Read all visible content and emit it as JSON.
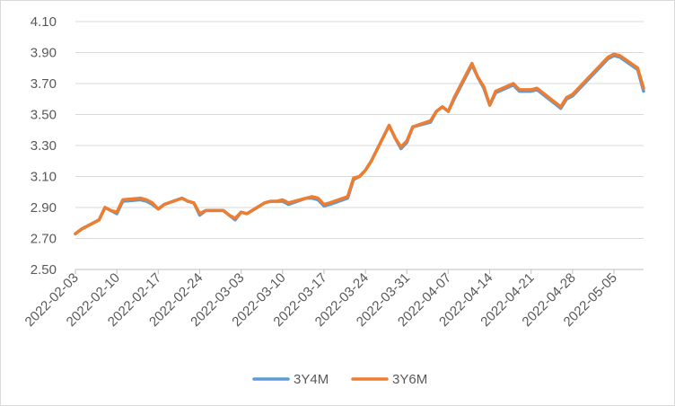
{
  "chart_data": {
    "type": "line",
    "title": "",
    "xlabel": "",
    "ylabel": "",
    "ylim": [
      2.5,
      4.1
    ],
    "yticks": [
      "2.50",
      "2.70",
      "2.90",
      "3.10",
      "3.30",
      "3.50",
      "3.70",
      "3.90",
      "4.10"
    ],
    "xticks": [
      "2022-02-03",
      "2022-02-10",
      "2022-02-17",
      "2022-02-24",
      "2022-03-03",
      "2022-03-10",
      "2022-03-17",
      "2022-03-24",
      "2022-03-31",
      "2022-04-07",
      "2022-04-14",
      "2022-04-21",
      "2022-04-28",
      "2022-05-05"
    ],
    "x_range": [
      "2022-02-03",
      "2022-05-10"
    ],
    "grid": true,
    "legend_position": "bottom",
    "series": [
      {
        "name": "3Y4M",
        "color": "#5B9BD5",
        "points": [
          [
            "2022-02-03",
            2.73
          ],
          [
            "2022-02-04",
            2.76
          ],
          [
            "2022-02-07",
            2.82
          ],
          [
            "2022-02-08",
            2.9
          ],
          [
            "2022-02-09",
            2.88
          ],
          [
            "2022-02-10",
            2.86
          ],
          [
            "2022-02-11",
            2.94
          ],
          [
            "2022-02-14",
            2.95
          ],
          [
            "2022-02-15",
            2.94
          ],
          [
            "2022-02-16",
            2.92
          ],
          [
            "2022-02-17",
            2.89
          ],
          [
            "2022-02-18",
            2.92
          ],
          [
            "2022-02-21",
            2.96
          ],
          [
            "2022-02-22",
            2.94
          ],
          [
            "2022-02-23",
            2.93
          ],
          [
            "2022-02-24",
            2.85
          ],
          [
            "2022-02-25",
            2.88
          ],
          [
            "2022-02-28",
            2.88
          ],
          [
            "2022-03-01",
            2.85
          ],
          [
            "2022-03-02",
            2.82
          ],
          [
            "2022-03-03",
            2.87
          ],
          [
            "2022-03-04",
            2.86
          ],
          [
            "2022-03-07",
            2.93
          ],
          [
            "2022-03-08",
            2.94
          ],
          [
            "2022-03-09",
            2.94
          ],
          [
            "2022-03-10",
            2.94
          ],
          [
            "2022-03-11",
            2.92
          ],
          [
            "2022-03-14",
            2.96
          ],
          [
            "2022-03-15",
            2.96
          ],
          [
            "2022-03-16",
            2.95
          ],
          [
            "2022-03-17",
            2.91
          ],
          [
            "2022-03-18",
            2.92
          ],
          [
            "2022-03-21",
            2.96
          ],
          [
            "2022-03-22",
            3.08
          ],
          [
            "2022-03-23",
            3.1
          ],
          [
            "2022-03-24",
            3.14
          ],
          [
            "2022-03-25",
            3.2
          ],
          [
            "2022-03-28",
            3.43
          ],
          [
            "2022-03-29",
            3.35
          ],
          [
            "2022-03-30",
            3.28
          ],
          [
            "2022-03-31",
            3.32
          ],
          [
            "2022-04-01",
            3.42
          ],
          [
            "2022-04-04",
            3.45
          ],
          [
            "2022-04-05",
            3.52
          ],
          [
            "2022-04-06",
            3.55
          ],
          [
            "2022-04-07",
            3.52
          ],
          [
            "2022-04-08",
            3.6
          ],
          [
            "2022-04-11",
            3.82
          ],
          [
            "2022-04-12",
            3.74
          ],
          [
            "2022-04-13",
            3.67
          ],
          [
            "2022-04-14",
            3.56
          ],
          [
            "2022-04-15",
            3.64
          ],
          [
            "2022-04-18",
            3.69
          ],
          [
            "2022-04-19",
            3.65
          ],
          [
            "2022-04-20",
            3.65
          ],
          [
            "2022-04-21",
            3.65
          ],
          [
            "2022-04-22",
            3.66
          ],
          [
            "2022-04-25",
            3.57
          ],
          [
            "2022-04-26",
            3.54
          ],
          [
            "2022-04-27",
            3.6
          ],
          [
            "2022-04-28",
            3.62
          ],
          [
            "2022-05-04",
            3.86
          ],
          [
            "2022-05-05",
            3.88
          ],
          [
            "2022-05-06",
            3.87
          ],
          [
            "2022-05-09",
            3.79
          ],
          [
            "2022-05-10",
            3.65
          ]
        ]
      },
      {
        "name": "3Y6M",
        "color": "#ED7D31",
        "points": [
          [
            "2022-02-03",
            2.73
          ],
          [
            "2022-02-04",
            2.76
          ],
          [
            "2022-02-07",
            2.82
          ],
          [
            "2022-02-08",
            2.9
          ],
          [
            "2022-02-09",
            2.88
          ],
          [
            "2022-02-10",
            2.87
          ],
          [
            "2022-02-11",
            2.95
          ],
          [
            "2022-02-14",
            2.96
          ],
          [
            "2022-02-15",
            2.95
          ],
          [
            "2022-02-16",
            2.93
          ],
          [
            "2022-02-17",
            2.89
          ],
          [
            "2022-02-18",
            2.92
          ],
          [
            "2022-02-21",
            2.96
          ],
          [
            "2022-02-22",
            2.94
          ],
          [
            "2022-02-23",
            2.93
          ],
          [
            "2022-02-24",
            2.86
          ],
          [
            "2022-02-25",
            2.88
          ],
          [
            "2022-02-28",
            2.88
          ],
          [
            "2022-03-01",
            2.85
          ],
          [
            "2022-03-02",
            2.83
          ],
          [
            "2022-03-03",
            2.87
          ],
          [
            "2022-03-04",
            2.86
          ],
          [
            "2022-03-07",
            2.93
          ],
          [
            "2022-03-08",
            2.94
          ],
          [
            "2022-03-09",
            2.94
          ],
          [
            "2022-03-10",
            2.95
          ],
          [
            "2022-03-11",
            2.93
          ],
          [
            "2022-03-14",
            2.96
          ],
          [
            "2022-03-15",
            2.97
          ],
          [
            "2022-03-16",
            2.96
          ],
          [
            "2022-03-17",
            2.92
          ],
          [
            "2022-03-18",
            2.93
          ],
          [
            "2022-03-21",
            2.97
          ],
          [
            "2022-03-22",
            3.09
          ],
          [
            "2022-03-23",
            3.1
          ],
          [
            "2022-03-24",
            3.14
          ],
          [
            "2022-03-25",
            3.2
          ],
          [
            "2022-03-28",
            3.43
          ],
          [
            "2022-03-29",
            3.35
          ],
          [
            "2022-03-30",
            3.29
          ],
          [
            "2022-03-31",
            3.33
          ],
          [
            "2022-04-01",
            3.42
          ],
          [
            "2022-04-04",
            3.46
          ],
          [
            "2022-04-05",
            3.52
          ],
          [
            "2022-04-06",
            3.55
          ],
          [
            "2022-04-07",
            3.52
          ],
          [
            "2022-04-08",
            3.61
          ],
          [
            "2022-04-11",
            3.83
          ],
          [
            "2022-04-12",
            3.74
          ],
          [
            "2022-04-13",
            3.68
          ],
          [
            "2022-04-14",
            3.56
          ],
          [
            "2022-04-15",
            3.65
          ],
          [
            "2022-04-18",
            3.7
          ],
          [
            "2022-04-19",
            3.66
          ],
          [
            "2022-04-20",
            3.66
          ],
          [
            "2022-04-21",
            3.66
          ],
          [
            "2022-04-22",
            3.67
          ],
          [
            "2022-04-25",
            3.58
          ],
          [
            "2022-04-26",
            3.55
          ],
          [
            "2022-04-27",
            3.61
          ],
          [
            "2022-04-28",
            3.63
          ],
          [
            "2022-05-04",
            3.87
          ],
          [
            "2022-05-05",
            3.89
          ],
          [
            "2022-05-06",
            3.88
          ],
          [
            "2022-05-09",
            3.8
          ],
          [
            "2022-05-10",
            3.67
          ]
        ]
      }
    ]
  }
}
